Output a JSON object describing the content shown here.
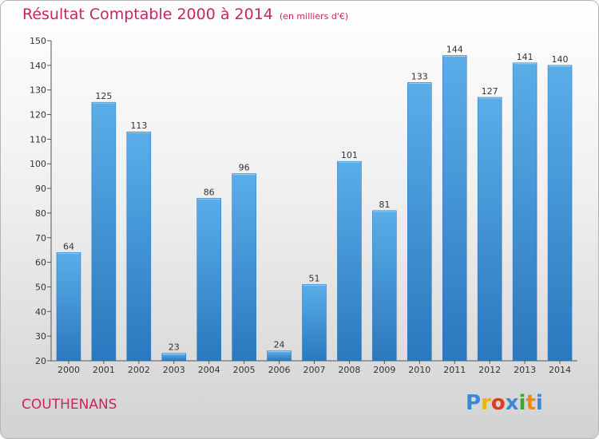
{
  "title": "Résultat Comptable 2000 à 2014",
  "subtitle": "(en milliers d'€)",
  "town": "COUTHENANS",
  "logo": {
    "letters": [
      "P",
      "r",
      "o",
      "x",
      "i",
      "t",
      "i"
    ],
    "colors": [
      "#3a88d6",
      "#f0b400",
      "#e23a20",
      "#3a88d6",
      "#38a82e",
      "#f08a00",
      "#3a88d6"
    ]
  },
  "colors": {
    "bar_top": "#5aaee8",
    "bar_bottom": "#2a78bf",
    "title": "#cc2266"
  },
  "chart_data": {
    "type": "bar",
    "categories": [
      "2000",
      "2001",
      "2002",
      "2003",
      "2004",
      "2005",
      "2006",
      "2007",
      "2008",
      "2009",
      "2010",
      "2011",
      "2012",
      "2013",
      "2014"
    ],
    "values": [
      64,
      125,
      113,
      23,
      86,
      96,
      24,
      51,
      101,
      81,
      133,
      144,
      127,
      141,
      140
    ],
    "ylim": [
      20,
      150
    ],
    "yticks": [
      20,
      30,
      40,
      50,
      60,
      70,
      80,
      90,
      100,
      110,
      120,
      130,
      140,
      150
    ],
    "grid": false
  }
}
